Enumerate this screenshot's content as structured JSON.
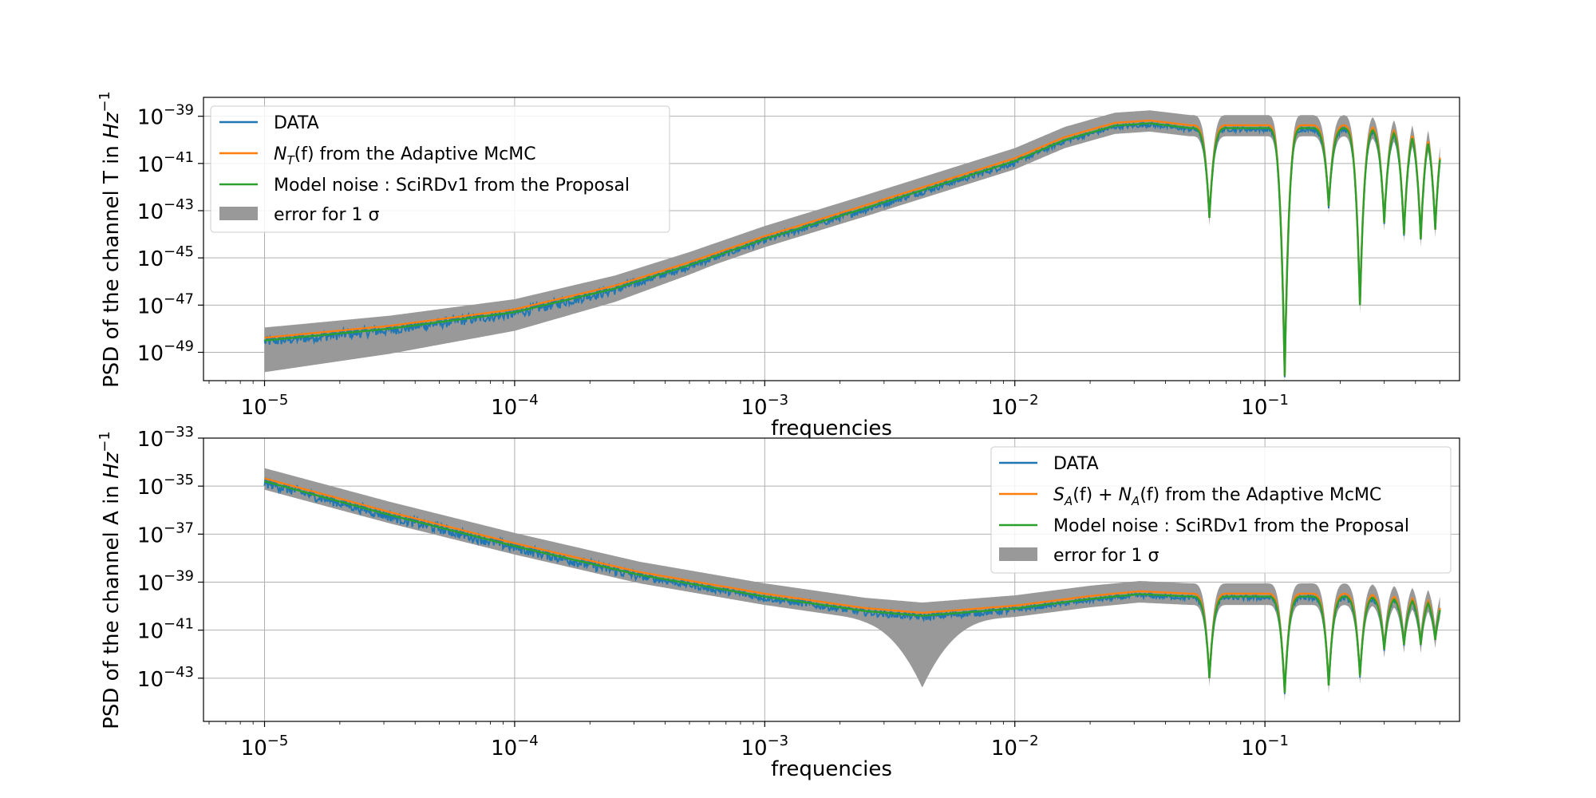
{
  "chart_data": [
    {
      "type": "line",
      "xlabel": "frequencies",
      "ylabel": "PSD of the channel T in Hz⁻¹",
      "ylabel_parts": {
        "prefix": "PSD of the channel T in ",
        "unit": "Hz",
        "exp": "−1"
      },
      "xscale": "log",
      "yscale": "log",
      "xlim": [
        5.7e-06,
        0.6
      ],
      "ylim_log10": [
        -50.2,
        -38.2
      ],
      "grid": true,
      "legend_position": "upper-left",
      "x_ticks": [
        {
          "base": "10",
          "exp": "−5",
          "log10": -5
        },
        {
          "base": "10",
          "exp": "−4",
          "log10": -4
        },
        {
          "base": "10",
          "exp": "−3",
          "log10": -3
        },
        {
          "base": "10",
          "exp": "−2",
          "log10": -2
        },
        {
          "base": "10",
          "exp": "−1",
          "log10": -1
        }
      ],
      "y_ticks": [
        {
          "base": "10",
          "exp": "−49",
          "log10": -49
        },
        {
          "base": "10",
          "exp": "−47",
          "log10": -47
        },
        {
          "base": "10",
          "exp": "−45",
          "log10": -45
        },
        {
          "base": "10",
          "exp": "−43",
          "log10": -43
        },
        {
          "base": "10",
          "exp": "−41",
          "log10": -41
        },
        {
          "base": "10",
          "exp": "−39",
          "log10": -39
        }
      ],
      "series": [
        {
          "name": "DATA",
          "color": "#1f77b4",
          "style": "line"
        },
        {
          "name": "N_T(f) from the Adaptive McMC",
          "name_parts": {
            "sym": "N",
            "sub": "T",
            "rest": "(f) from the Adaptive McMC"
          },
          "color": "#ff7f0e",
          "style": "line"
        },
        {
          "name": "Model noise : SciRDv1 from the Proposal",
          "color": "#2ca02c",
          "style": "line"
        },
        {
          "name": "error for 1 σ",
          "color": "#999999",
          "style": "band"
        }
      ],
      "model_points_log10": [
        [
          -5.0,
          -48.5
        ],
        [
          -4.5,
          -48.0
        ],
        [
          -4.0,
          -47.3
        ],
        [
          -3.6,
          -46.3
        ],
        [
          -3.3,
          -45.3
        ],
        [
          -3.0,
          -44.2
        ],
        [
          -2.6,
          -42.9
        ],
        [
          -2.3,
          -41.9
        ],
        [
          -2.0,
          -40.9
        ],
        [
          -1.8,
          -40.0
        ],
        [
          -1.6,
          -39.4
        ],
        [
          -1.46,
          -39.3
        ],
        [
          -1.3,
          -39.5
        ]
      ],
      "notches_log10": [
        {
          "x": -1.222,
          "depth_y": -43.3
        },
        {
          "x": -0.921,
          "depth_y": -50.0
        },
        {
          "x": -0.745,
          "depth_y": -42.8
        },
        {
          "x": -0.62,
          "depth_y": -47.0
        },
        {
          "x": -0.523,
          "depth_y": -43.5
        },
        {
          "x": -0.444,
          "depth_y": -44.0
        },
        {
          "x": -0.377,
          "depth_y": -44.2
        },
        {
          "x": -0.319,
          "depth_y": -43.8
        }
      ],
      "x_end_log10": -0.3
    },
    {
      "type": "line",
      "xlabel": "frequencies",
      "ylabel": "PSD of the channel A in Hz⁻¹",
      "ylabel_parts": {
        "prefix": "PSD of the channel A in ",
        "unit": "Hz",
        "exp": "−1"
      },
      "xscale": "log",
      "yscale": "log",
      "xlim": [
        5.7e-06,
        0.6
      ],
      "ylim_log10": [
        -44.8,
        -33.0
      ],
      "grid": true,
      "legend_position": "upper-right",
      "x_ticks": [
        {
          "base": "10",
          "exp": "−5",
          "log10": -5
        },
        {
          "base": "10",
          "exp": "−4",
          "log10": -4
        },
        {
          "base": "10",
          "exp": "−3",
          "log10": -3
        },
        {
          "base": "10",
          "exp": "−2",
          "log10": -2
        },
        {
          "base": "10",
          "exp": "−1",
          "log10": -1
        }
      ],
      "y_ticks": [
        {
          "base": "10",
          "exp": "−43",
          "log10": -43
        },
        {
          "base": "10",
          "exp": "−41",
          "log10": -41
        },
        {
          "base": "10",
          "exp": "−39",
          "log10": -39
        },
        {
          "base": "10",
          "exp": "−37",
          "log10": -37
        },
        {
          "base": "10",
          "exp": "−35",
          "log10": -35
        },
        {
          "base": "10",
          "exp": "−33",
          "log10": -33
        }
      ],
      "series": [
        {
          "name": "DATA",
          "color": "#1f77b4",
          "style": "line"
        },
        {
          "name": "S_A(f) + N_A(f) from the Adaptive McMC",
          "name_parts": {
            "sym": "S",
            "sub": "A",
            "mid": "(f) + ",
            "sym2": "N",
            "sub2": "A",
            "rest": "(f) from the Adaptive McMC"
          },
          "color": "#ff7f0e",
          "style": "line"
        },
        {
          "name": "Model noise : SciRDv1 from the Proposal",
          "color": "#2ca02c",
          "style": "line"
        },
        {
          "name": "error for 1 σ",
          "color": "#999999",
          "style": "band"
        }
      ],
      "model_points_log10": [
        [
          -5.0,
          -34.8
        ],
        [
          -4.5,
          -36.2
        ],
        [
          -4.0,
          -37.5
        ],
        [
          -3.5,
          -38.7
        ],
        [
          -3.0,
          -39.6
        ],
        [
          -2.6,
          -40.2
        ],
        [
          -2.37,
          -40.4
        ],
        [
          -2.0,
          -40.1
        ],
        [
          -1.7,
          -39.7
        ],
        [
          -1.5,
          -39.5
        ],
        [
          -1.3,
          -39.6
        ]
      ],
      "band_dip": {
        "x_log10": -2.37,
        "depth_y": -43.4
      },
      "notches_log10": [
        {
          "x": -1.222,
          "depth_y": -43.0
        },
        {
          "x": -0.921,
          "depth_y": -43.6
        },
        {
          "x": -0.745,
          "depth_y": -43.3
        },
        {
          "x": -0.62,
          "depth_y": -42.9
        },
        {
          "x": -0.523,
          "depth_y": -41.8
        },
        {
          "x": -0.444,
          "depth_y": -41.6
        },
        {
          "x": -0.377,
          "depth_y": -41.6
        },
        {
          "x": -0.319,
          "depth_y": -41.4
        }
      ],
      "x_end_log10": -0.3
    }
  ]
}
